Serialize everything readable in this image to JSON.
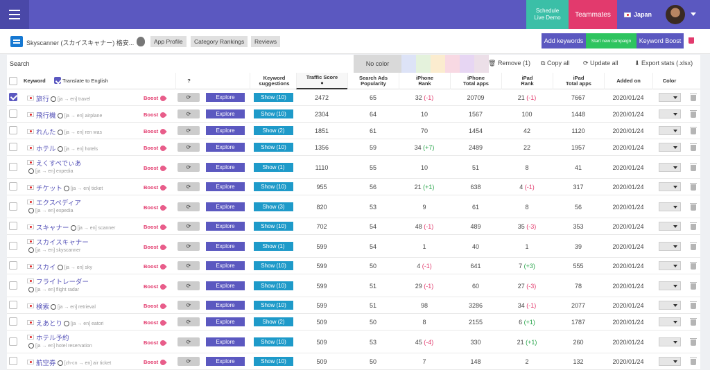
{
  "topbar": {
    "schedule_line1": "Schedule",
    "schedule_line2": "Live Demo",
    "teammates": "Teammates",
    "country": "Japan"
  },
  "subbar": {
    "app_name": "Skyscanner (スカイスキャナー) 格安...",
    "app_profile": "App Profile",
    "category_rankings": "Category Rankings",
    "reviews": "Reviews",
    "add_keywords": "Add keywords",
    "start_campaign": "Start new campaign",
    "keyword_boost": "Keyword Boost"
  },
  "toolbar": {
    "search_label": "Search",
    "no_color": "No color",
    "remove": "Remove (1)",
    "copy_all": "Copy all",
    "update_all": "Update all",
    "export": "Export stats (.xlsx)",
    "swatches": [
      "#dde3f7",
      "#e4f2dc",
      "#fbeccf",
      "#f8d9e3",
      "#e7d6f3",
      "#ecdfe8"
    ]
  },
  "headers": {
    "keyword": "Keyword",
    "translate": "Translate to English",
    "kw_suggestions_1": "Keyword",
    "kw_suggestions_2": "suggestions",
    "traffic_score": "Traffic Score",
    "search_ads_1": "Search Ads",
    "search_ads_2": "Popularity",
    "iphone_rank_1": "iPhone",
    "iphone_rank_2": "Rank",
    "iphone_total_1": "iPhone",
    "iphone_total_2": "Total apps",
    "ipad_rank_1": "iPad",
    "ipad_rank_2": "Rank",
    "ipad_total_1": "iPad",
    "ipad_total_2": "Total apps",
    "added_on": "Added on",
    "color": "Color"
  },
  "labels": {
    "boost": "Boost",
    "explore": "Explore"
  },
  "rows": [
    {
      "checked": true,
      "kw": "旅行",
      "tr": "[ja → en] travel",
      "two": false,
      "show": "Show (10)",
      "traffic": "2472",
      "ads": "65",
      "iphone_rank": "32",
      "iphone_delta": "(-1)",
      "iphone_delta_type": "neg",
      "iphone_total": "20709",
      "ipad_rank": "21",
      "ipad_delta": "(-1)",
      "ipad_delta_type": "neg",
      "ipad_total": "7667",
      "date": "2020/01/24"
    },
    {
      "checked": false,
      "kw": "飛行機",
      "tr": "[ja → en] airplane",
      "two": false,
      "show": "Show (10)",
      "traffic": "2304",
      "ads": "64",
      "iphone_rank": "10",
      "iphone_delta": "",
      "iphone_delta_type": "",
      "iphone_total": "1567",
      "ipad_rank": "100",
      "ipad_delta": "",
      "ipad_delta_type": "",
      "ipad_total": "1448",
      "date": "2020/01/24"
    },
    {
      "checked": false,
      "kw": "れんた",
      "tr": "[ja → en] ren was",
      "two": false,
      "show": "Show (2)",
      "traffic": "1851",
      "ads": "61",
      "iphone_rank": "70",
      "iphone_delta": "",
      "iphone_delta_type": "",
      "iphone_total": "1454",
      "ipad_rank": "42",
      "ipad_delta": "",
      "ipad_delta_type": "",
      "ipad_total": "1120",
      "date": "2020/01/24"
    },
    {
      "checked": false,
      "kw": "ホテル",
      "tr": "[ja → en] hotels",
      "two": false,
      "show": "Show (10)",
      "traffic": "1356",
      "ads": "59",
      "iphone_rank": "34",
      "iphone_delta": "(+7)",
      "iphone_delta_type": "pos",
      "iphone_total": "2489",
      "ipad_rank": "22",
      "ipad_delta": "",
      "ipad_delta_type": "",
      "ipad_total": "1957",
      "date": "2020/01/24"
    },
    {
      "checked": false,
      "kw": "えくすぺでぃあ",
      "tr": "[ja → en] expedia",
      "two": true,
      "show": "Show (1)",
      "traffic": "1110",
      "ads": "55",
      "iphone_rank": "10",
      "iphone_delta": "",
      "iphone_delta_type": "",
      "iphone_total": "51",
      "ipad_rank": "8",
      "ipad_delta": "",
      "ipad_delta_type": "",
      "ipad_total": "41",
      "date": "2020/01/24"
    },
    {
      "checked": false,
      "kw": "チケット",
      "tr": "[ja → en] ticket",
      "two": false,
      "show": "Show (10)",
      "traffic": "955",
      "ads": "56",
      "iphone_rank": "21",
      "iphone_delta": "(+1)",
      "iphone_delta_type": "pos",
      "iphone_total": "638",
      "ipad_rank": "4",
      "ipad_delta": "(-1)",
      "ipad_delta_type": "neg",
      "ipad_total": "317",
      "date": "2020/01/24"
    },
    {
      "checked": false,
      "kw": "エクスペディア",
      "tr": "[ja → en] expedia",
      "two": true,
      "show": "Show (3)",
      "traffic": "820",
      "ads": "53",
      "iphone_rank": "9",
      "iphone_delta": "",
      "iphone_delta_type": "",
      "iphone_total": "61",
      "ipad_rank": "8",
      "ipad_delta": "",
      "ipad_delta_type": "",
      "ipad_total": "56",
      "date": "2020/01/24"
    },
    {
      "checked": false,
      "kw": "スキャナー",
      "tr": "[ja → en] scanner",
      "two": false,
      "show": "Show (10)",
      "traffic": "702",
      "ads": "54",
      "iphone_rank": "48",
      "iphone_delta": "(-1)",
      "iphone_delta_type": "neg",
      "iphone_total": "489",
      "ipad_rank": "35",
      "ipad_delta": "(-3)",
      "ipad_delta_type": "neg",
      "ipad_total": "353",
      "date": "2020/01/24"
    },
    {
      "checked": false,
      "kw": "スカイスキャナー",
      "tr": "[ja → en] skyscanner",
      "two": true,
      "show": "Show (1)",
      "traffic": "599",
      "ads": "54",
      "iphone_rank": "1",
      "iphone_delta": "",
      "iphone_delta_type": "",
      "iphone_total": "40",
      "ipad_rank": "1",
      "ipad_delta": "",
      "ipad_delta_type": "",
      "ipad_total": "39",
      "date": "2020/01/24"
    },
    {
      "checked": false,
      "kw": "スカイ",
      "tr": "[ja → en] sky",
      "two": false,
      "show": "Show (10)",
      "traffic": "599",
      "ads": "50",
      "iphone_rank": "4",
      "iphone_delta": "(-1)",
      "iphone_delta_type": "neg",
      "iphone_total": "641",
      "ipad_rank": "7",
      "ipad_delta": "(+3)",
      "ipad_delta_type": "pos",
      "ipad_total": "555",
      "date": "2020/01/24"
    },
    {
      "checked": false,
      "kw": "フライトレーダー",
      "tr": "[ja → en] flight radar",
      "two": true,
      "show": "Show (10)",
      "traffic": "599",
      "ads": "51",
      "iphone_rank": "29",
      "iphone_delta": "(-1)",
      "iphone_delta_type": "neg",
      "iphone_total": "60",
      "ipad_rank": "27",
      "ipad_delta": "(-3)",
      "ipad_delta_type": "neg",
      "ipad_total": "78",
      "date": "2020/01/24"
    },
    {
      "checked": false,
      "kw": "検索",
      "tr": "[ja → en] retrieval",
      "two": false,
      "show": "Show (10)",
      "traffic": "599",
      "ads": "51",
      "iphone_rank": "98",
      "iphone_delta": "",
      "iphone_delta_type": "",
      "iphone_total": "3286",
      "ipad_rank": "34",
      "ipad_delta": "(-1)",
      "ipad_delta_type": "neg",
      "ipad_total": "2077",
      "date": "2020/01/24"
    },
    {
      "checked": false,
      "kw": "えあとり",
      "tr": "[ja → en] eatori",
      "two": false,
      "show": "Show (2)",
      "traffic": "509",
      "ads": "50",
      "iphone_rank": "8",
      "iphone_delta": "",
      "iphone_delta_type": "",
      "iphone_total": "2155",
      "ipad_rank": "6",
      "ipad_delta": "(+1)",
      "ipad_delta_type": "pos",
      "ipad_total": "1787",
      "date": "2020/01/24"
    },
    {
      "checked": false,
      "kw": "ホテル予約",
      "tr": "[ja → en] hotel reservation",
      "two": true,
      "show": "Show (10)",
      "traffic": "509",
      "ads": "53",
      "iphone_rank": "45",
      "iphone_delta": "(-4)",
      "iphone_delta_type": "neg",
      "iphone_total": "330",
      "ipad_rank": "21",
      "ipad_delta": "(+1)",
      "ipad_delta_type": "pos",
      "ipad_total": "260",
      "date": "2020/01/24"
    },
    {
      "checked": false,
      "kw": "航空券",
      "tr": "[zh-cn → en] air ticket",
      "two": false,
      "show": "Show (10)",
      "traffic": "509",
      "ads": "50",
      "iphone_rank": "7",
      "iphone_delta": "",
      "iphone_delta_type": "",
      "iphone_total": "148",
      "ipad_rank": "2",
      "ipad_delta": "",
      "ipad_delta_type": "",
      "ipad_total": "132",
      "date": "2020/01/24"
    }
  ]
}
